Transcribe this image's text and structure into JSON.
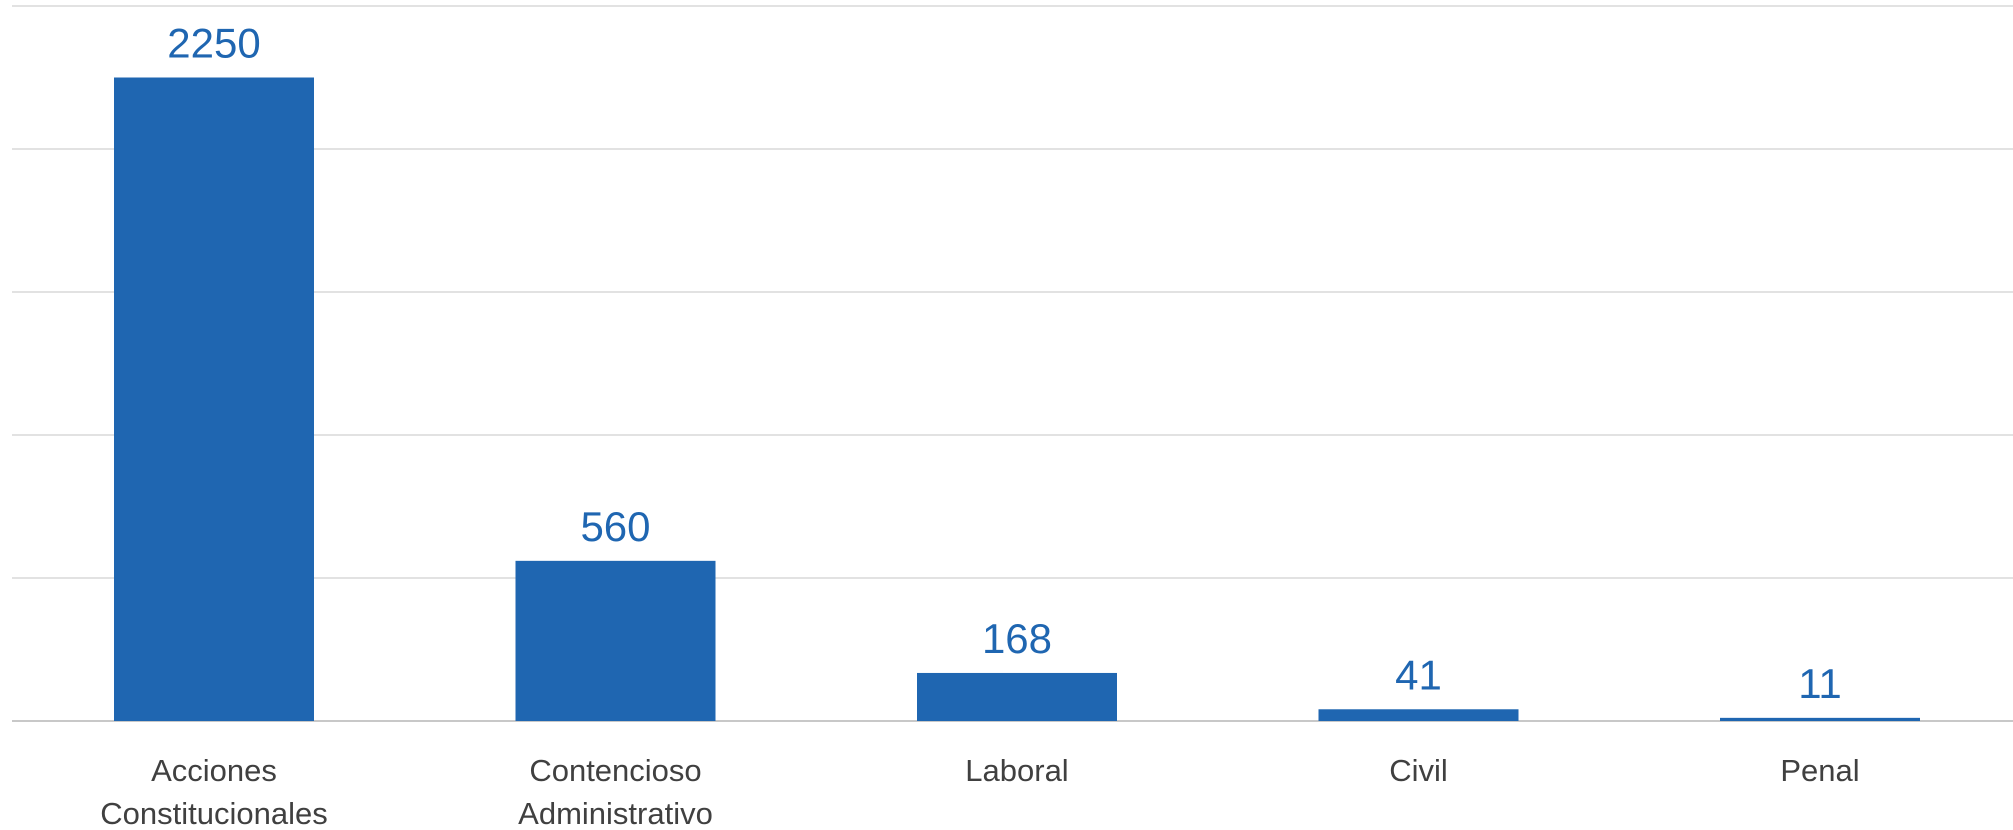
{
  "chart_data": {
    "type": "bar",
    "title": "",
    "xlabel": "",
    "ylabel": "",
    "categories": [
      "Acciones Constitucionales",
      "Contencioso Administrativo",
      "Laboral",
      "Civil",
      "Penal"
    ],
    "values": [
      2250,
      560,
      168,
      41,
      11
    ],
    "ylim": [
      0,
      2500
    ],
    "y_gridlines": [
      0,
      500,
      1000,
      1500,
      2000,
      2500
    ],
    "y_tick_labels_visible": false,
    "grid": true,
    "legend": "none",
    "data_labels": true,
    "colors": {
      "bar": "#1f66b1",
      "data_label": "#1f66b1",
      "category_label": "#404040",
      "grid": "#d9d9d9"
    }
  }
}
